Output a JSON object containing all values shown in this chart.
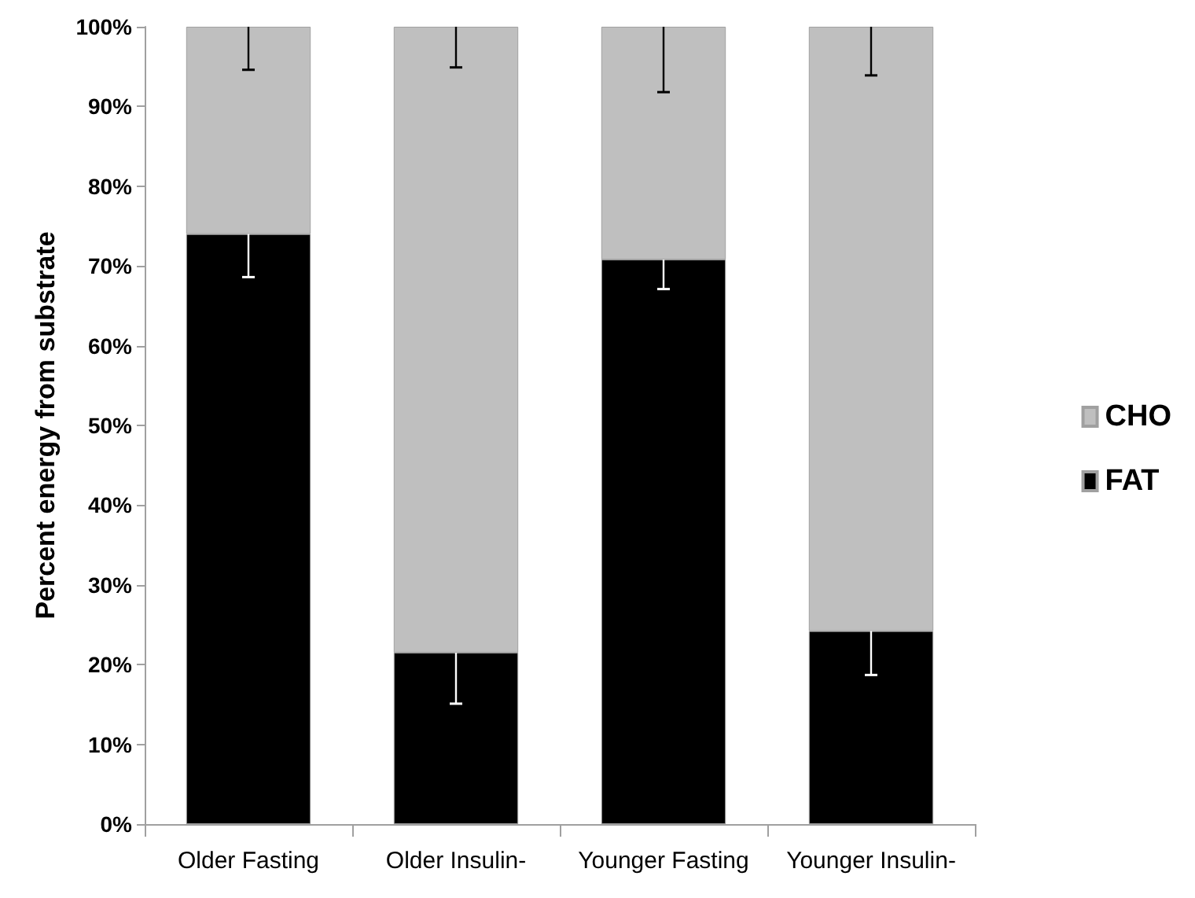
{
  "chart_data": {
    "type": "bar",
    "stacked": true,
    "ylabel": "Percent energy from substrate",
    "categories": [
      "Older Fasting",
      "Older Insulin-",
      "Younger Fasting",
      "Younger Insulin-"
    ],
    "series": [
      {
        "name": "FAT",
        "color": "#000000",
        "values": [
          74,
          21.5,
          70.8,
          24.2
        ],
        "errors": [
          [
            68.6,
            74
          ],
          [
            15.1,
            21.5
          ],
          [
            67.1,
            70.8
          ],
          [
            18.7,
            24.2
          ]
        ]
      },
      {
        "name": "CHO",
        "color": "#bfbfbf",
        "values": [
          26,
          78.5,
          29.2,
          75.8
        ],
        "errors": [
          [
            94.6,
            100
          ],
          [
            94.9,
            100
          ],
          [
            91.8,
            100
          ],
          [
            93.9,
            100
          ]
        ]
      }
    ],
    "ylim": [
      0,
      100
    ],
    "yticks": [
      {
        "value": 0,
        "label": "0%"
      },
      {
        "value": 10,
        "label": "10%"
      },
      {
        "value": 20,
        "label": "20%"
      },
      {
        "value": 30,
        "label": "30%"
      },
      {
        "value": 40,
        "label": "40%"
      },
      {
        "value": 50,
        "label": "50%"
      },
      {
        "value": 60,
        "label": "60%"
      },
      {
        "value": 70,
        "label": "70%"
      },
      {
        "value": 80,
        "label": "80%"
      },
      {
        "value": 90,
        "label": "90%"
      },
      {
        "value": 100,
        "label": "100%"
      }
    ],
    "grid": false,
    "legend": "right"
  }
}
